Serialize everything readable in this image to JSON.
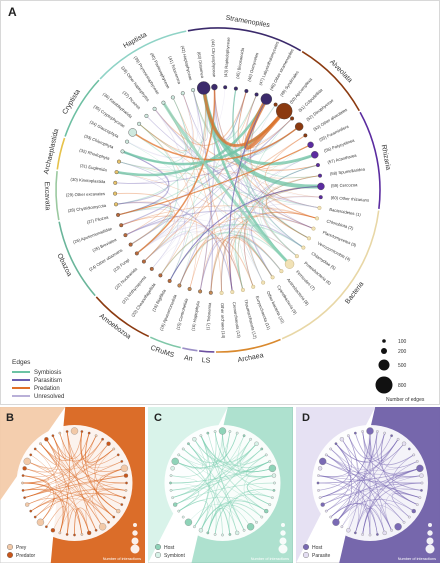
{
  "panel_a": {
    "label": "A",
    "groups": [
      {
        "name": "Haptista",
        "color": "#8fd3c6"
      },
      {
        "name": "Stramenopiles",
        "color": "#3b2a6b"
      },
      {
        "name": "Alveolata",
        "color": "#8b3a10"
      },
      {
        "name": "Rhizaria",
        "color": "#5b2ca0"
      },
      {
        "name": "Bacteria",
        "color": "#e8d7a6"
      },
      {
        "name": "Archaea",
        "color": "#d9892e"
      },
      {
        "name": "LS",
        "color": "#6c4fa0"
      },
      {
        "name": "An",
        "color": "#9b8fc6"
      },
      {
        "name": "CRuMS",
        "color": "#7fc7a8"
      },
      {
        "name": "Amoebozoa",
        "color": "#8b3a10"
      },
      {
        "name": "Obazoa",
        "color": "#6ab59a"
      },
      {
        "name": "Excavata",
        "color": "#9bc9a0"
      },
      {
        "name": "Archaeplastida",
        "color": "#e6c24a"
      },
      {
        "name": "Cryptista",
        "color": "#6dbfa2"
      }
    ],
    "taxa": [
      "(63) Diatomea",
      "(44) Chrysophyceae",
      "(43) Raphidophyceae",
      "(45) Bicosoecida",
      "(46) Oomycetes",
      "(47) Labyrinthulomycetes",
      "(48) Other stramenopiles",
      "(49) Syndiniales",
      "(50) Apicomplexa",
      "(51) Colpodellida",
      "(52) Dinophyceae",
      "(53) Other alveolates",
      "(55) Foraminifera",
      "(56) Polycystinea",
      "(57) Acantharea",
      "(58) Spumellaridea",
      "(59) Cercozoa",
      "(60) Other rhizarians",
      "Bacteroidetes (1)",
      "Chlorobiota (2)",
      "Planctomycetes (3)",
      "Verrucomicrobia (4)",
      "Chlamydiae (5)",
      "Proteobacteria (6)",
      "Firmicutes (7)",
      "Actinobacteria (8)",
      "Cyanobacteria (9)",
      "Other bacteria (10)",
      "Euryarchaeota (11)",
      "Thaumarchaeota (12)",
      "Crenarchaeota (13)",
      "Other archaea (14)",
      "(17) Telonemia",
      "(16) Haptophyta",
      "(15) Centrohelida",
      "(18) Apusomonadida",
      "(19) Rigifilida",
      "(20) Choanoflagellida",
      "(21) Ichthyosporea",
      "(22) Nucleariida",
      "(23) Fungi",
      "(24) Other obazoans",
      "(25) Breviatea",
      "(26) Apusomonadidae",
      "(27) Filozoa",
      "(28) Chytridiomycota",
      "(29) Other excavates",
      "(30) Kinetoplastida",
      "(31) Euglenida",
      "(32) Rhodophyta",
      "(33) Chlorophyta",
      "(34) Glaucophyta",
      "(35) Cryptophyceae",
      "(36) Katablepharida",
      "(37) Picozoa",
      "(38) Other haptophytes",
      "(39) Prymnesiophyceae",
      "(40) Pavlovophyceae",
      "(41) Telonemea",
      "(42) Haptophyceae"
    ],
    "legend": {
      "title": "Edges",
      "items": [
        {
          "label": "Symbiosis",
          "color": "#6cc3a4"
        },
        {
          "label": "Parasitism",
          "color": "#6c5fb0"
        },
        {
          "label": "Predation",
          "color": "#e0712a"
        },
        {
          "label": "Unresolved",
          "color": "#b9b0d8"
        }
      ]
    },
    "size_legend": {
      "values": [
        "100",
        "200",
        "500",
        "800"
      ],
      "caption": "Number of edges"
    }
  },
  "panel_b": {
    "label": "B",
    "accent": "#d9651e",
    "legend": [
      {
        "label": "Prey",
        "color": "#f2c9a8"
      },
      {
        "label": "Predator",
        "color": "#c8561a"
      }
    ],
    "caption": "Number of interactions"
  },
  "panel_c": {
    "label": "C",
    "accent": "#6cc9a8",
    "legend": [
      {
        "label": "Host",
        "color": "#8fd3b8"
      },
      {
        "label": "Symbiont",
        "color": "#d8f2e8"
      }
    ],
    "caption": "Number of interactions"
  },
  "panel_d": {
    "label": "D",
    "accent": "#6f5fa8",
    "legend": [
      {
        "label": "Host",
        "color": "#7a6ab4"
      },
      {
        "label": "Parasite",
        "color": "#e4def2"
      }
    ],
    "caption": "Number of interactions"
  }
}
